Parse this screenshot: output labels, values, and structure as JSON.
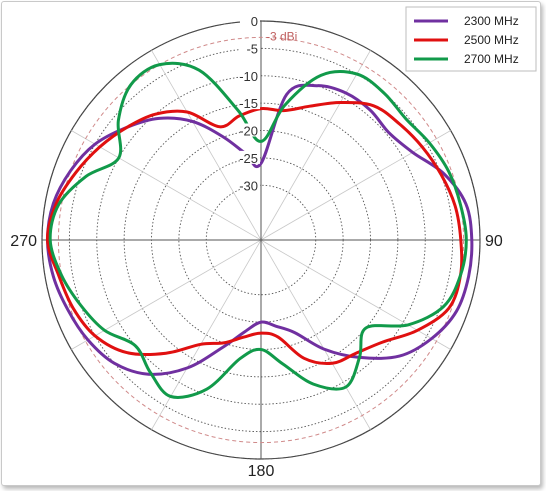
{
  "chart_data": {
    "type": "polar-line",
    "title": "",
    "radial_axis": {
      "ticks": [
        0,
        -5,
        -10,
        -15,
        -20,
        -25,
        -30
      ],
      "tick_labels": [
        "0",
        "-5",
        "-10",
        "-15",
        "-20",
        "-25",
        "-30"
      ],
      "range": [
        -40,
        0
      ],
      "unit": "dBi"
    },
    "angle_labels": [
      {
        "angle": 90,
        "text": "90"
      },
      {
        "angle": 180,
        "text": "180"
      },
      {
        "angle": 270,
        "text": "270"
      }
    ],
    "reference_ring": {
      "value": -3,
      "label": "-3 dBi",
      "color": "#d08a8a"
    },
    "grid": true,
    "legend_position": "top-right",
    "series": [
      {
        "name": "2300 MHz",
        "color": "#7030a0",
        "angles": [
          0,
          10,
          20,
          30,
          40,
          50,
          60,
          70,
          80,
          90,
          100,
          110,
          120,
          130,
          140,
          150,
          160,
          170,
          180,
          190,
          200,
          210,
          220,
          230,
          240,
          250,
          260,
          270,
          280,
          290,
          300,
          310,
          320,
          330,
          340,
          350
        ],
        "values": [
          -26,
          -13,
          -10,
          -9,
          -9,
          -9.5,
          -8,
          -4.5,
          -2,
          -1.5,
          -1.5,
          -2,
          -4,
          -7,
          -12,
          -17,
          -22,
          -24,
          -25,
          -23,
          -19,
          -13,
          -8,
          -5,
          -3.5,
          -2.5,
          -1.5,
          -1,
          -1.5,
          -3,
          -5,
          -8,
          -11,
          -15,
          -20,
          -24
        ]
      },
      {
        "name": "2500 MHz",
        "color": "#e01010",
        "angles": [
          0,
          10,
          20,
          30,
          40,
          50,
          60,
          70,
          80,
          90,
          100,
          110,
          120,
          130,
          140,
          150,
          160,
          170,
          180,
          190,
          200,
          210,
          220,
          230,
          240,
          250,
          260,
          270,
          280,
          290,
          300,
          310,
          320,
          330,
          340,
          350
        ],
        "values": [
          -16,
          -16,
          -14,
          -11,
          -8,
          -7,
          -6,
          -5,
          -4,
          -3.5,
          -3,
          -3.5,
          -7,
          -11,
          -13,
          -14,
          -17,
          -22,
          -23,
          -22,
          -20,
          -18,
          -13,
          -8,
          -5,
          -3.5,
          -2.5,
          -1,
          -2,
          -4,
          -6,
          -8,
          -10,
          -13,
          -18,
          -17
        ]
      },
      {
        "name": "2700 MHz",
        "color": "#119a4a",
        "angles": [
          0,
          10,
          20,
          30,
          40,
          50,
          60,
          70,
          80,
          90,
          100,
          110,
          120,
          130,
          140,
          150,
          160,
          170,
          180,
          190,
          200,
          210,
          220,
          230,
          240,
          250,
          260,
          270,
          280,
          290,
          300,
          310,
          320,
          330,
          340,
          350
        ],
        "values": [
          -22,
          -15,
          -8,
          -5,
          -5,
          -5.5,
          -4.5,
          -3.5,
          -3,
          -2.5,
          -3,
          -4.5,
          -9,
          -15,
          -12,
          -9,
          -12,
          -17,
          -20,
          -18,
          -11,
          -7,
          -8.5,
          -10,
          -7,
          -5,
          -3,
          -1.5,
          -2.5,
          -6,
          -10,
          -6,
          -3,
          -3,
          -7,
          -16
        ]
      }
    ]
  }
}
